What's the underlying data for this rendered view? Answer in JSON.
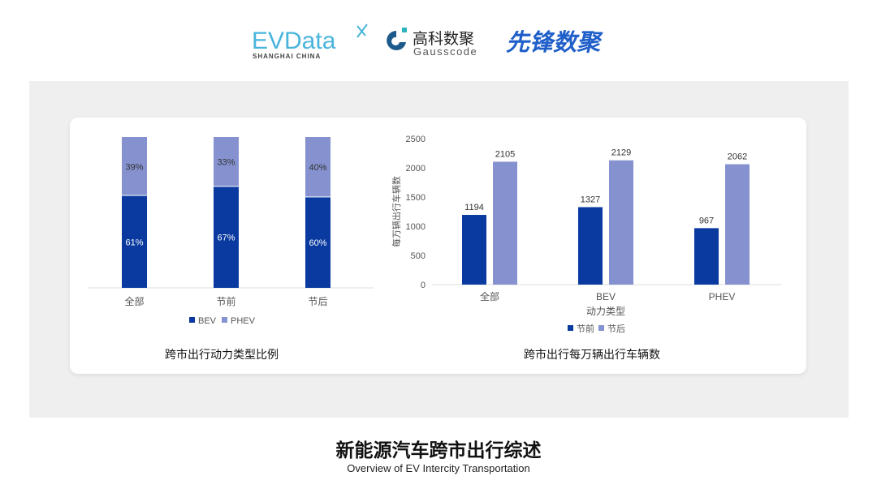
{
  "logos": {
    "evdata": "EVData",
    "evdata_sub": "SHANGHAI CHINA",
    "gauss_cn": "高科数聚",
    "gauss_en": "Gausscode",
    "xianfeng": "先锋数聚"
  },
  "colors": {
    "bev": "#0a3aa0",
    "phev": "#8592cf",
    "before": "#0a3aa0",
    "after": "#8592cf",
    "panel": "#efefef"
  },
  "chart_data": [
    {
      "type": "bar",
      "stacked": true,
      "percent": true,
      "title": "跨市出行动力类型比例",
      "categories": [
        "全部",
        "节前",
        "节后"
      ],
      "series": [
        {
          "name": "BEV",
          "values": [
            61,
            67,
            60
          ],
          "labels": [
            "61%",
            "67%",
            "60%"
          ]
        },
        {
          "name": "PHEV",
          "values": [
            39,
            33,
            40
          ],
          "labels": [
            "39%",
            "33%",
            "40%"
          ]
        }
      ],
      "legend": "bottom",
      "ylim": [
        0,
        100
      ]
    },
    {
      "type": "bar",
      "title": "跨市出行每万辆出行车辆数",
      "xlabel": "动力类型",
      "ylabel": "每万辆出行车辆数",
      "categories": [
        "全部",
        "BEV",
        "PHEV"
      ],
      "series": [
        {
          "name": "节前",
          "values": [
            1194,
            1327,
            967
          ]
        },
        {
          "name": "节后",
          "values": [
            2105,
            2129,
            2062
          ]
        }
      ],
      "yticks": [
        0,
        500,
        1000,
        1500,
        2000,
        2500
      ],
      "ylim": [
        0,
        2500
      ],
      "legend": "bottom",
      "grid": false
    }
  ],
  "footer": {
    "title": "新能源汽车跨市出行综述",
    "subtitle": "Overview of EV Intercity Transportation"
  }
}
